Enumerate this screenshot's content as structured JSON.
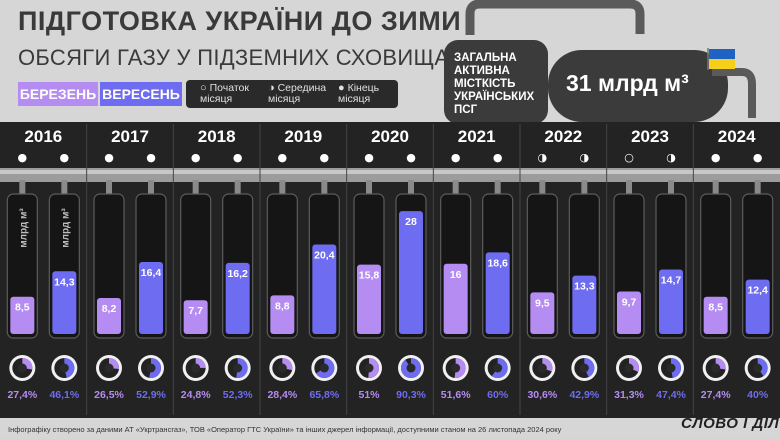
{
  "title": "ПІДГОТОВКА УКРАЇНИ ДО ЗИМИ",
  "subtitle": "ОБСЯГИ ГАЗУ У ПІДЗЕМНИХ СХОВИЩАХ",
  "legend": {
    "march": "БЕРЕЗЕНЬ",
    "september": "ВЕРЕСЕНЬ",
    "start_month": "Початок місяця",
    "mid_month": "Середина місяця",
    "end_month": "Кінець місяця"
  },
  "tank": {
    "label": "ЗАГАЛЬНА АКТИВНА МІСТКІСТЬ УКРАЇНСЬКИХ ПСГ",
    "value": "31 млрд м³"
  },
  "unit_label": "млрд м³",
  "colors": {
    "march": "#b58cf2",
    "september": "#6e6cf0",
    "background": "#d6d6d6",
    "dark": "#2b2b2b"
  },
  "chart_data": {
    "type": "bar",
    "capacity": 31,
    "categories": [
      "2016",
      "2017",
      "2018",
      "2019",
      "2020",
      "2021",
      "2022",
      "2023",
      "2024"
    ],
    "series": [
      {
        "name": "БЕРЕЗЕНЬ",
        "values": [
          8.5,
          8.2,
          7.7,
          8.8,
          15.8,
          16,
          9.5,
          9.7,
          8.5
        ],
        "labels": [
          "8,5",
          "8,2",
          "7,7",
          "8,8",
          "15,8",
          "16",
          "9,5",
          "9,7",
          "8,5"
        ],
        "percent": [
          27.4,
          26.5,
          24.8,
          28.4,
          51,
          51.6,
          30.6,
          31.3,
          27.4
        ],
        "percent_labels": [
          "27,4",
          "26,5",
          "24,8",
          "28,4",
          "51",
          "51,6",
          "30,6",
          "31,3",
          "27,4"
        ],
        "timing": [
          "end",
          "end",
          "end",
          "end",
          "end",
          "end",
          "mid",
          "start",
          "end"
        ]
      },
      {
        "name": "ВЕРЕСЕНЬ",
        "values": [
          14.3,
          16.4,
          16.2,
          20.4,
          28,
          18.6,
          13.3,
          14.7,
          12.4
        ],
        "labels": [
          "14,3",
          "16,4",
          "16,2",
          "20,4",
          "28",
          "18,6",
          "13,3",
          "14,7",
          "12,4"
        ],
        "percent": [
          46.1,
          52.9,
          52.3,
          65.8,
          90.3,
          60,
          42.9,
          47.4,
          40
        ],
        "percent_labels": [
          "46,1",
          "52,9",
          "52,3",
          "65,8",
          "90,3",
          "60",
          "42,9",
          "47,4",
          "40"
        ],
        "timing": [
          "end",
          "end",
          "end",
          "end",
          "end",
          "end",
          "mid",
          "mid",
          "end"
        ]
      }
    ]
  },
  "footnote": "Інфографіку створено за даними АТ «Укртрансгаз», ТОВ «Оператор ГТС України» та інших джерел інформації, доступними станом на 26 листопада 2024 року",
  "logo": "СЛОВО І ДІЛО"
}
